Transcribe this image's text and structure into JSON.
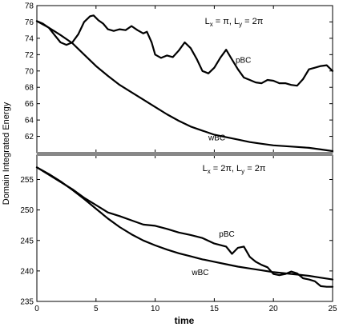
{
  "figure": {
    "ylabel": "Domain Integrated Energy",
    "xlabel": "time"
  },
  "chart_data": [
    {
      "type": "line",
      "title": "L_x = π, L_y = 2π",
      "title_parts": {
        "l1": "L",
        "s1": "x",
        "m1": " = π, L",
        "s2": "y",
        "m2": " = 2π"
      },
      "xlim": [
        0,
        25
      ],
      "ylim": [
        60,
        78
      ],
      "xticks": [
        0,
        5,
        10,
        15,
        20,
        25
      ],
      "yticks": [
        62,
        64,
        66,
        68,
        70,
        72,
        74,
        76,
        78
      ],
      "xtick_labels_visible": false,
      "grid": false,
      "series": [
        {
          "name": "pBC",
          "label_at": [
            16.8,
            71.0
          ],
          "x": [
            0,
            0.5,
            1,
            1.5,
            2,
            2.5,
            3,
            3.5,
            4,
            4.5,
            4.8,
            5.2,
            5.6,
            6,
            6.5,
            7,
            7.5,
            8,
            8.5,
            9,
            9.3,
            9.7,
            10,
            10.5,
            11,
            11.5,
            12,
            12.5,
            13,
            13.5,
            14,
            14.5,
            15,
            15.5,
            16,
            16.5,
            17,
            17.5,
            18,
            18.5,
            19,
            19.5,
            20,
            20.5,
            21,
            21.5,
            22,
            22.5,
            23,
            23.5,
            24,
            24.5,
            25
          ],
          "y": [
            76.1,
            75.8,
            75.3,
            74.4,
            73.5,
            73.2,
            73.5,
            74.5,
            76.0,
            76.7,
            76.8,
            76.2,
            75.8,
            75.1,
            74.9,
            75.1,
            75.0,
            75.5,
            75.0,
            74.6,
            74.8,
            73.5,
            72.0,
            71.6,
            71.9,
            71.7,
            72.5,
            73.5,
            72.8,
            71.5,
            70.0,
            69.7,
            70.4,
            71.6,
            72.6,
            71.4,
            70.2,
            69.2,
            68.9,
            68.6,
            68.5,
            68.9,
            68.8,
            68.5,
            68.5,
            68.3,
            68.2,
            69.0,
            70.2,
            70.4,
            70.6,
            70.7,
            70.0
          ]
        },
        {
          "name": "wBC",
          "label_at": [
            14.5,
            61.5
          ],
          "x": [
            0,
            1,
            2,
            3,
            4,
            5,
            6,
            7,
            8,
            9,
            10,
            11,
            12,
            13,
            14,
            15,
            16,
            17,
            18,
            19,
            20,
            21,
            22,
            23,
            24,
            25
          ],
          "y": [
            76.1,
            75.3,
            74.4,
            73.4,
            72.0,
            70.6,
            69.4,
            68.3,
            67.4,
            66.5,
            65.6,
            64.7,
            63.9,
            63.2,
            62.7,
            62.2,
            61.9,
            61.6,
            61.3,
            61.1,
            60.9,
            60.8,
            60.7,
            60.6,
            60.4,
            60.2
          ]
        }
      ]
    },
    {
      "type": "line",
      "title": "L_x = 2π, L_y = 2π",
      "title_parts": {
        "l1": "L",
        "s1": "x",
        "m1": " = 2π, L",
        "s2": "y",
        "m2": " = 2π"
      },
      "xlim": [
        0,
        25
      ],
      "ylim": [
        235,
        259
      ],
      "xticks": [
        0,
        5,
        10,
        15,
        20,
        25
      ],
      "yticks": [
        235,
        240,
        245,
        250,
        255
      ],
      "xtick_labels_visible": true,
      "grid": false,
      "series": [
        {
          "name": "pBC",
          "label_at": [
            15.4,
            245.6
          ],
          "x": [
            0,
            1,
            2,
            3,
            4,
            5,
            6,
            7,
            8,
            9,
            10,
            11,
            12,
            13,
            14,
            15,
            16,
            16.5,
            17,
            17.5,
            18,
            18.5,
            19,
            19.5,
            20,
            20.5,
            21,
            21.5,
            22,
            22.5,
            23,
            23.5,
            24,
            24.5,
            25
          ],
          "y": [
            257.0,
            255.8,
            254.6,
            253.4,
            252.0,
            250.8,
            249.6,
            249.0,
            248.3,
            247.6,
            247.4,
            246.9,
            246.3,
            245.9,
            245.4,
            244.5,
            244.0,
            242.8,
            243.8,
            244.0,
            242.3,
            241.5,
            241.0,
            240.6,
            239.5,
            239.3,
            239.5,
            239.9,
            239.6,
            238.8,
            238.6,
            238.3,
            237.5,
            237.4,
            237.4
          ]
        },
        {
          "name": "wBC",
          "label_at": [
            13.1,
            239.3
          ],
          "x": [
            0,
            1,
            2,
            3,
            4,
            5,
            6,
            7,
            8,
            9,
            10,
            11,
            12,
            13,
            14,
            15,
            16,
            17,
            18,
            19,
            20,
            21,
            22,
            23,
            24,
            25
          ],
          "y": [
            257.0,
            255.9,
            254.7,
            253.3,
            251.8,
            250.2,
            248.6,
            247.2,
            246.0,
            245.0,
            244.2,
            243.5,
            242.9,
            242.4,
            241.9,
            241.5,
            241.1,
            240.7,
            240.4,
            240.1,
            239.8,
            239.6,
            239.4,
            239.2,
            238.9,
            238.6
          ]
        }
      ]
    }
  ]
}
